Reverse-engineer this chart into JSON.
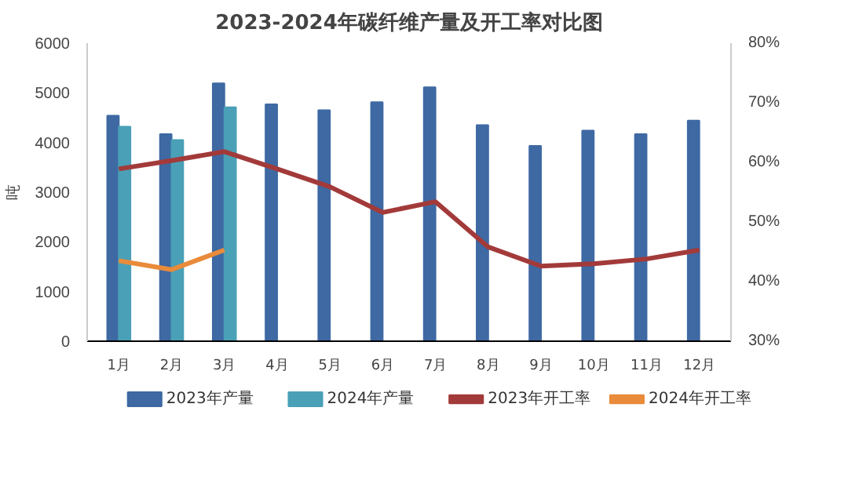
{
  "chart_data": {
    "type": "bar",
    "title": "2023-2024年碳纤维产量及开工率对比图",
    "ylabel": "吨",
    "categories": [
      "1月",
      "2月",
      "3月",
      "4月",
      "5月",
      "6月",
      "7月",
      "8月",
      "9月",
      "10月",
      "11月",
      "12月"
    ],
    "series": [
      {
        "name": "2023年产量",
        "color": "#3e69a3",
        "values": [
          4540,
          4170,
          5190,
          4770,
          4650,
          4810,
          5110,
          4350,
          3930,
          4240,
          4170,
          4440
        ]
      },
      {
        "name": "2024年产量",
        "color": "#4aa0b6",
        "values": [
          4320,
          4050,
          4710,
          null,
          null,
          null,
          null,
          null,
          null,
          null,
          null,
          null
        ]
      },
      {
        "name": "2023年开工率",
        "type": "line",
        "axis": "y2",
        "color": "#a33a3a",
        "values": [
          58.9,
          60.3,
          61.8,
          58.9,
          55.9,
          51.6,
          53.4,
          45.8,
          42.6,
          43.0,
          43.8,
          45.3
        ]
      },
      {
        "name": "2024年开工率",
        "type": "line",
        "axis": "y2",
        "color": "#e98b3a",
        "values": [
          43.5,
          42.0,
          45.3,
          null,
          null,
          null,
          null,
          null,
          null,
          null,
          null,
          null
        ]
      }
    ],
    "ylim": [
      0,
      6000
    ],
    "yticks": [
      0,
      1000,
      2000,
      3000,
      4000,
      5000,
      6000
    ],
    "y2lim": [
      30,
      80
    ],
    "y2ticks": [
      {
        "value": 30,
        "label": "30%"
      },
      {
        "value": 40,
        "label": "40%"
      },
      {
        "value": 50,
        "label": "50%"
      },
      {
        "value": 60,
        "label": "60%"
      },
      {
        "value": 70,
        "label": "70%"
      },
      {
        "value": 80,
        "label": "80%"
      }
    ],
    "grid": false,
    "legend": "bottom"
  }
}
